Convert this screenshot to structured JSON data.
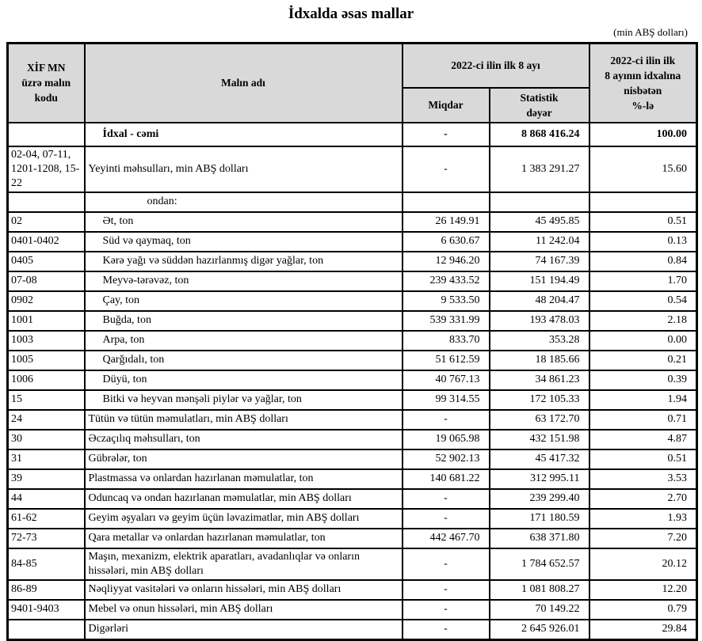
{
  "title": "İdxalda əsas mallar",
  "unit_note": "(min ABŞ dolları)",
  "colors": {
    "header_background": "#d9d9d9",
    "border": "#000000",
    "text": "#000000"
  },
  "table": {
    "headers": {
      "code": [
        "XİF MN",
        "üzrə malın",
        "kodu"
      ],
      "name": "Malın adı",
      "period_group": "2022-ci ilin ilk 8 ayı",
      "qty": "Miqdar",
      "value": [
        "Statistik",
        "dəyər"
      ],
      "share": [
        "2022-ci ilin ilk",
        "8 ayının idxalına",
        "nisbətən",
        "%-lə"
      ]
    },
    "rows": [
      {
        "code": "",
        "name": "İdxal - cəmi",
        "qty": "-",
        "value": "8 868 416.24",
        "share": "100.00",
        "bold": true,
        "indent": 1
      },
      {
        "code": "02-04, 07-11, 1201-1208, 15-22",
        "name": "Yeyinti məhsulları, min ABŞ dolları",
        "qty": "-",
        "value": "1 383 291.27",
        "share": "15.60",
        "indent": 0
      },
      {
        "code": "",
        "name": "ondan:",
        "qty": "",
        "value": "",
        "share": "",
        "indent": 2
      },
      {
        "code": "02",
        "name": "Ət, ton",
        "qty": "26 149.91",
        "value": "45 495.85",
        "share": "0.51",
        "indent": 1
      },
      {
        "code": "0401-0402",
        "name": "Süd və qaymaq, ton",
        "qty": "6 630.67",
        "value": "11 242.04",
        "share": "0.13",
        "indent": 1
      },
      {
        "code": "0405",
        "name": "Kərə yağı və süddən hazırlanmış digər yağlar, ton",
        "qty": "12 946.20",
        "value": "74 167.39",
        "share": "0.84",
        "indent": 1
      },
      {
        "code": "07-08",
        "name": "Meyvə-tərəvəz, ton",
        "qty": "239 433.52",
        "value": "151 194.49",
        "share": "1.70",
        "indent": 1
      },
      {
        "code": "0902",
        "name": "Çay, ton",
        "qty": "9 533.50",
        "value": "48 204.47",
        "share": "0.54",
        "indent": 1
      },
      {
        "code": "1001",
        "name": "Buğda, ton",
        "qty": "539 331.99",
        "value": "193 478.03",
        "share": "2.18",
        "indent": 1
      },
      {
        "code": "1003",
        "name": "Arpa, ton",
        "qty": "833.70",
        "value": "353.28",
        "share": "0.00",
        "indent": 1
      },
      {
        "code": "1005",
        "name": "Qarğıdalı, ton",
        "qty": "51 612.59",
        "value": "18 185.66",
        "share": "0.21",
        "indent": 1
      },
      {
        "code": "1006",
        "name": "Düyü, ton",
        "qty": "40 767.13",
        "value": "34 861.23",
        "share": "0.39",
        "indent": 1
      },
      {
        "code": "15",
        "name": "Bitki və heyvan mənşəli piylər və yağlar, ton",
        "qty": "99 314.55",
        "value": "172 105.33",
        "share": "1.94",
        "indent": 1
      },
      {
        "code": "24",
        "name": "Tütün və tütün məmulatları, min ABŞ dolları",
        "qty": "-",
        "value": "63 172.70",
        "share": "0.71",
        "indent": 0
      },
      {
        "code": "30",
        "name": "Əczaçılıq məhsulları, ton",
        "qty": "19 065.98",
        "value": "432 151.98",
        "share": "4.87",
        "indent": 0
      },
      {
        "code": "31",
        "name": "Gübrələr, ton",
        "qty": "52 902.13",
        "value": "45 417.32",
        "share": "0.51",
        "indent": 0
      },
      {
        "code": "39",
        "name": "Plastmassa və onlardan hazırlanan məmulatlar, ton",
        "qty": "140 681.22",
        "value": "312 995.11",
        "share": "3.53",
        "indent": 0
      },
      {
        "code": "44",
        "name": "Oduncaq və ondan hazırlanan məmulatlar, min ABŞ dolları",
        "qty": "-",
        "value": "239 299.40",
        "share": "2.70",
        "indent": 0
      },
      {
        "code": "61-62",
        "name": "Geyim əşyaları və geyim üçün ləvazimatlar, min ABŞ dolları",
        "qty": "-",
        "value": "171 180.59",
        "share": "1.93",
        "indent": 0
      },
      {
        "code": "72-73",
        "name": "Qara metallar və onlardan hazırlanan məmulatlar, ton",
        "qty": "442 467.70",
        "value": "638 371.80",
        "share": "7.20",
        "indent": 0
      },
      {
        "code": "84-85",
        "name": "Maşın, mexanizm, elektrik aparatları, avadanlıqlar və onların hissələri, min ABŞ dolları",
        "qty": "-",
        "value": "1 784 652.57",
        "share": "20.12",
        "indent": 0
      },
      {
        "code": "86-89",
        "name": "Nəqliyyat vasitələri və onların hissələri, min ABŞ dolları",
        "qty": "-",
        "value": "1 081 808.27",
        "share": "12.20",
        "indent": 0
      },
      {
        "code": "9401-9403",
        "name": "Mebel və onun hissələri, min ABŞ dolları",
        "qty": "-",
        "value": "70 149.22",
        "share": "0.79",
        "indent": 0
      },
      {
        "code": "",
        "name": "Digərləri",
        "qty": "-",
        "value": "2 645 926.01",
        "share": "29.84",
        "indent": 0
      }
    ]
  }
}
